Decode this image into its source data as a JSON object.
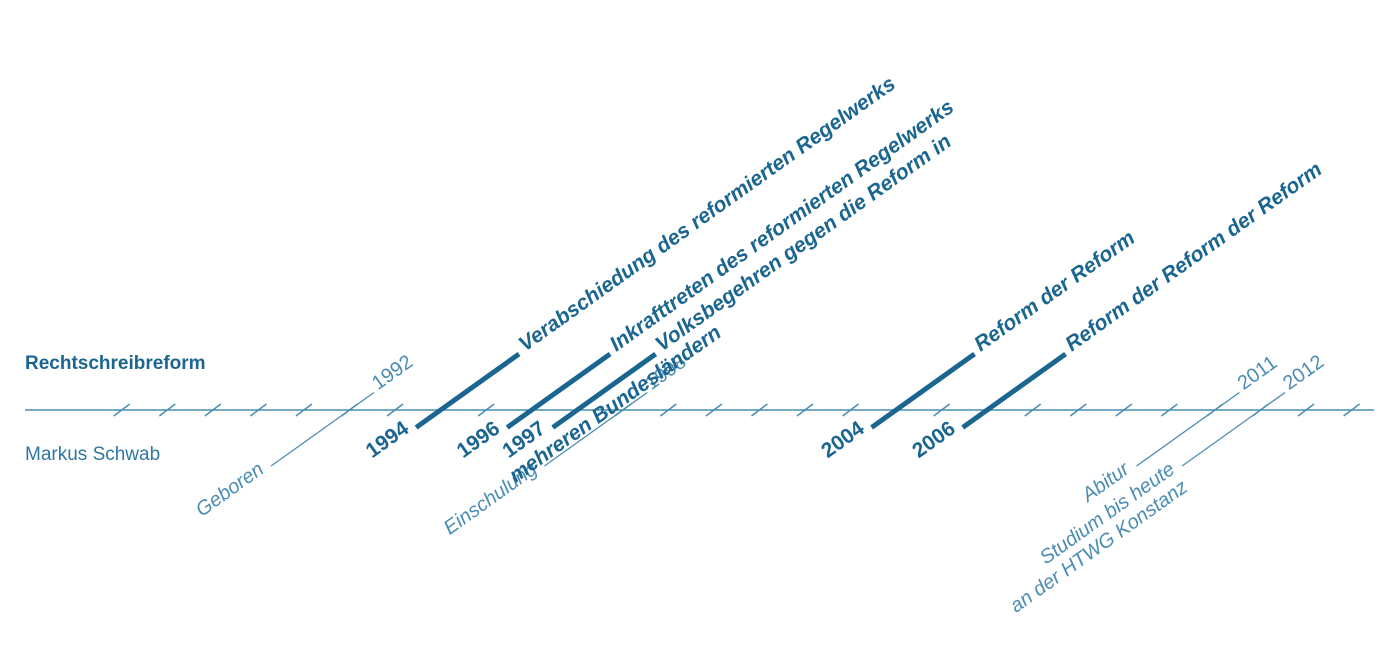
{
  "rows": {
    "top_label": "Rechtschreibreform",
    "bottom_label": "Markus Schwab"
  },
  "reform_events": [
    {
      "year": "1994",
      "lines": [
        "Verabschiedung des reformierten Regelwerks"
      ]
    },
    {
      "year": "1996",
      "lines": [
        "Inkrafttreten des reformierten Regelwerks"
      ]
    },
    {
      "year": "1997",
      "lines": [
        "Volksbegehren gegen die Reform in",
        "mehreren Bundesländern"
      ]
    },
    {
      "year": "2004",
      "lines": [
        "Reform der Reform"
      ]
    },
    {
      "year": "2006",
      "lines": [
        "Reform der Reform der Reform"
      ]
    }
  ],
  "life_events": [
    {
      "year": "1992",
      "lines": [
        "Geboren"
      ]
    },
    {
      "year": "1998",
      "lines": [
        "Einschulung"
      ]
    },
    {
      "year": "2011",
      "lines": [
        "Abitur"
      ]
    },
    {
      "year": "2012",
      "lines": [
        "Studium bis heute",
        "an der HTWG Konstanz"
      ]
    }
  ],
  "colors": {
    "axis": "#4a8db3",
    "event_mark": "#1b6690",
    "life_mark": "#4a8db3"
  }
}
